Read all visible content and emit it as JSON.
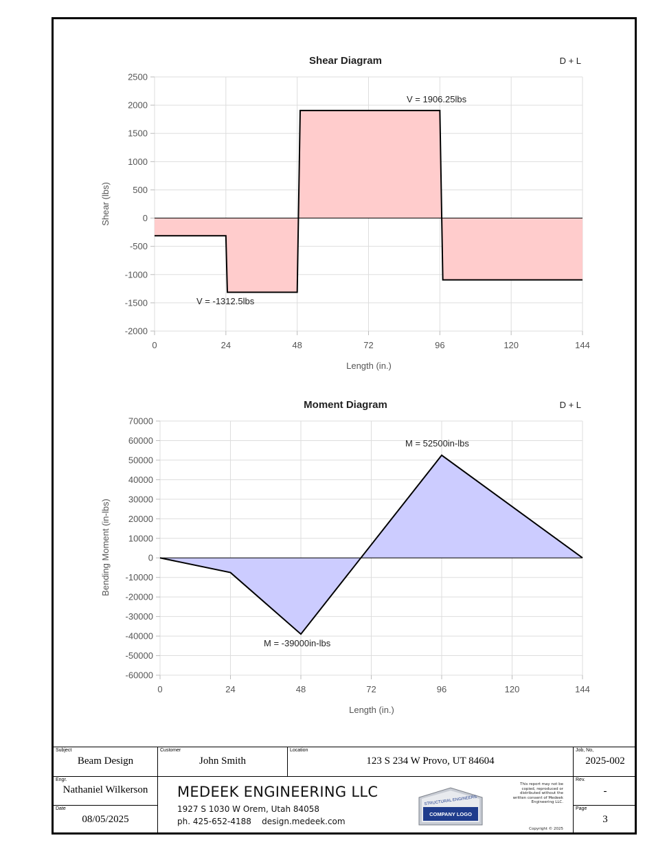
{
  "shear_chart": {
    "title": "Shear Diagram",
    "corner_label": "D + L",
    "ylabel": "Shear (lbs)",
    "xlabel": "Length (in.)",
    "yticks": [
      "2500",
      "2000",
      "1500",
      "1000",
      "500",
      "0",
      "-500",
      "-1000",
      "-1500",
      "-2000"
    ],
    "xticks": [
      "0",
      "24",
      "48",
      "72",
      "96",
      "120",
      "144"
    ],
    "annotations": [
      "V = 1906.25lbs",
      "V = -1312.5lbs"
    ],
    "fill_color": "#ffcccc"
  },
  "moment_chart": {
    "title": "Moment Diagram",
    "corner_label": "D + L",
    "ylabel": "Bending Moment (in-lbs)",
    "xlabel": "Length (in.)",
    "yticks": [
      "70000",
      "60000",
      "50000",
      "40000",
      "30000",
      "20000",
      "10000",
      "0",
      "-10000",
      "-20000",
      "-30000",
      "-40000",
      "-50000",
      "-60000"
    ],
    "xticks": [
      "0",
      "24",
      "48",
      "72",
      "96",
      "120",
      "144"
    ],
    "annotations": [
      "M = 52500in-lbs",
      "M = -39000in-lbs"
    ],
    "fill_color": "#ccccff"
  },
  "chart_data": [
    {
      "type": "area",
      "title": "Shear Diagram",
      "xlabel": "Length (in.)",
      "ylabel": "Shear (lbs)",
      "xlim": [
        0,
        144
      ],
      "ylim": [
        -2000,
        2500
      ],
      "grid": true,
      "x": [
        0,
        24,
        24.5,
        48,
        49,
        96,
        97,
        144
      ],
      "y": [
        -312.5,
        -312.5,
        -1312.5,
        -1312.5,
        1906.25,
        1906.25,
        -1093.75,
        -1093.75
      ]
    },
    {
      "type": "area",
      "title": "Moment Diagram",
      "xlabel": "Length (in.)",
      "ylabel": "Bending Moment (in-lbs)",
      "xlim": [
        0,
        144
      ],
      "ylim": [
        -60000,
        70000
      ],
      "grid": true,
      "x": [
        0,
        24,
        48,
        96,
        144
      ],
      "y": [
        0,
        -7500,
        -39000,
        52500,
        0
      ]
    }
  ],
  "title_block": {
    "subject_label": "Subject",
    "subject": "Beam Design",
    "customer_label": "Customer",
    "customer": "John Smith",
    "location_label": "Location",
    "location": "123 S 234 W Provo, UT 84604",
    "job_label": "Job, No,",
    "job": "2025-002",
    "engr_label": "Engr.",
    "engr": "Nathaniel Wilkerson",
    "rev_label": "Rev.",
    "rev": "-",
    "date_label": "Date",
    "date": "08/05/2025",
    "page_label": "Page",
    "page": "3",
    "company_name": "MEDEEK ENGINEERING LLC",
    "company_address": "1927 S 1030 W Orem, Utah 84058",
    "company_contact": "ph. 425-652-4188    design.medeek.com",
    "logo_top_text": "STRUCTURAL ENGINEERS",
    "logo_text": "COMPANY LOGO",
    "notice_lines": [
      "This report may not be",
      "copied, reproduced or",
      "distributed without the",
      "written consent of Medeek",
      "Engineering LLC."
    ],
    "copyright": "Copyright © 2025"
  }
}
